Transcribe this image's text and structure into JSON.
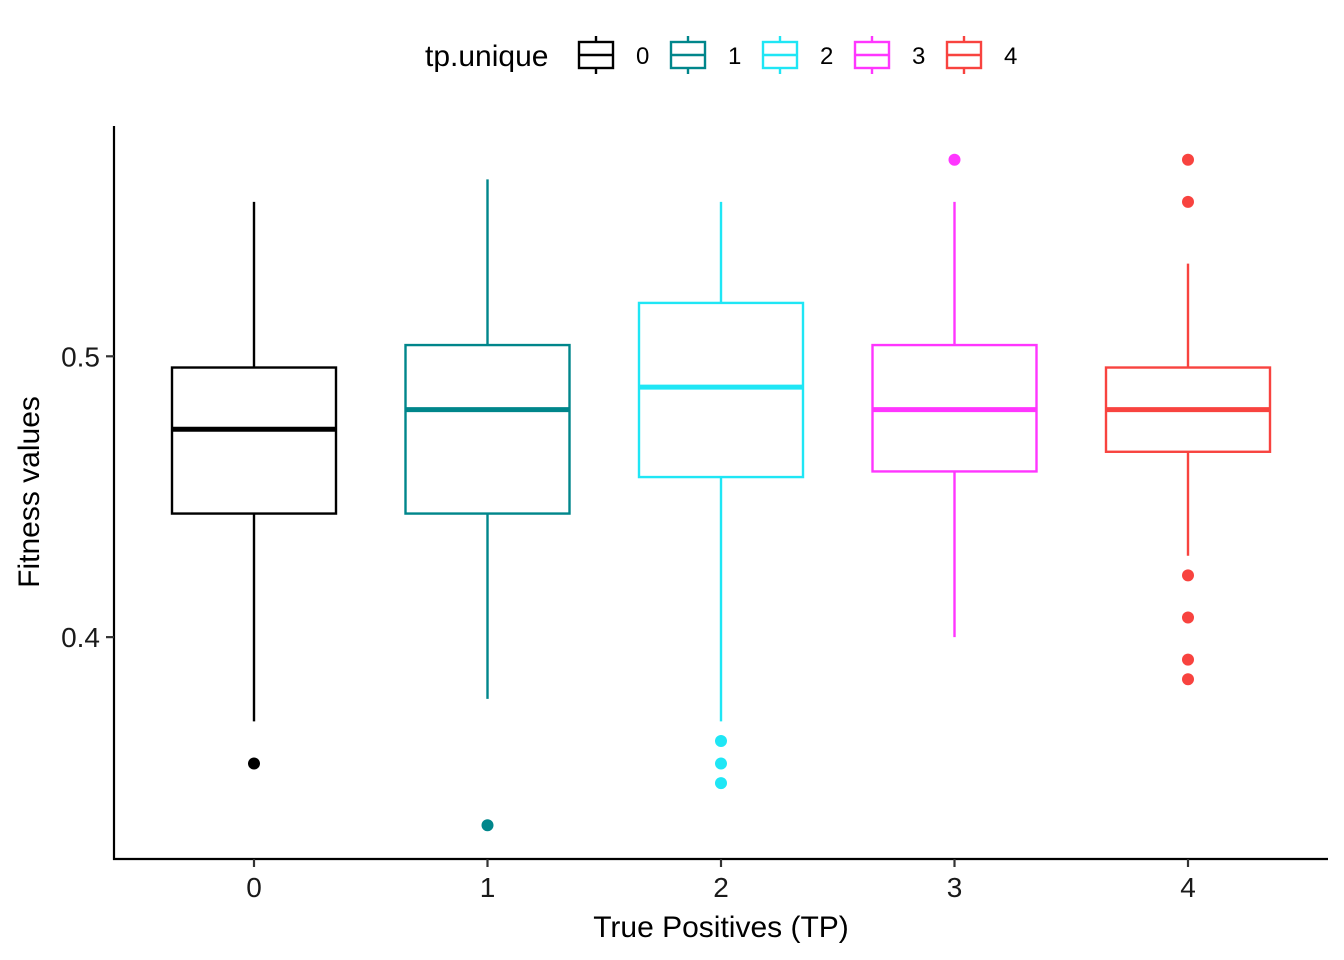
{
  "chart_data": {
    "type": "boxplot",
    "xlabel": "True Positives (TP)",
    "ylabel": "Fitness values",
    "categories": [
      "0",
      "1",
      "2",
      "3",
      "4"
    ],
    "y_ticks": [
      0.4,
      0.5
    ],
    "y_tick_labels": [
      "0.4",
      "0.5"
    ],
    "ylim": [
      0.321,
      0.582
    ],
    "grid": false,
    "legend": {
      "title": "tp.unique",
      "position": "top",
      "entries": [
        "0",
        "1",
        "2",
        "3",
        "4"
      ]
    },
    "series": [
      {
        "category": "0",
        "color": "#000000",
        "whisker_low": 0.37,
        "q1": 0.444,
        "median": 0.474,
        "q3": 0.496,
        "whisker_high": 0.555,
        "outliers": [
          0.355
        ]
      },
      {
        "category": "1",
        "color": "#00868B",
        "whisker_low": 0.378,
        "q1": 0.444,
        "median": 0.481,
        "q3": 0.504,
        "whisker_high": 0.563,
        "outliers": [
          0.333
        ]
      },
      {
        "category": "2",
        "color": "#1FE6F5",
        "whisker_low": 0.37,
        "q1": 0.457,
        "median": 0.489,
        "q3": 0.519,
        "whisker_high": 0.555,
        "outliers": [
          0.363,
          0.355,
          0.348
        ]
      },
      {
        "category": "3",
        "color": "#FF36FF",
        "whisker_low": 0.4,
        "q1": 0.459,
        "median": 0.481,
        "q3": 0.504,
        "whisker_high": 0.555,
        "outliers": [
          0.57
        ]
      },
      {
        "category": "4",
        "color": "#F8433F",
        "whisker_low": 0.429,
        "q1": 0.466,
        "median": 0.481,
        "q3": 0.496,
        "whisker_high": 0.533,
        "outliers": [
          0.57,
          0.555,
          0.422,
          0.407,
          0.392,
          0.385
        ]
      }
    ]
  }
}
